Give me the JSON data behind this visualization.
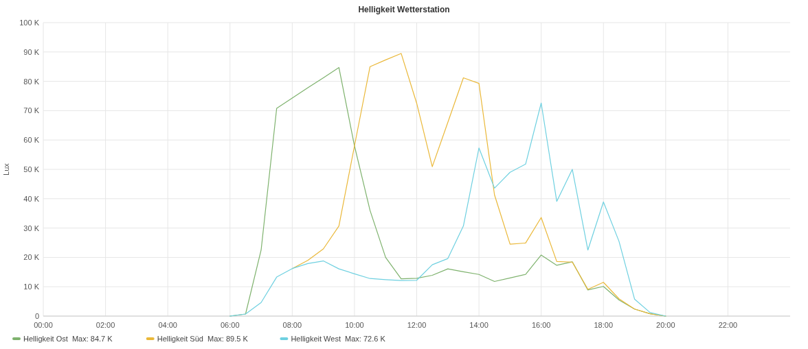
{
  "chart_data": {
    "type": "line",
    "title": "Helligkeit Wetterstation",
    "ylabel": "Lux",
    "x": [
      6,
      6.5,
      7,
      7.5,
      8,
      8.5,
      9,
      9.5,
      10,
      10.5,
      11,
      11.5,
      12,
      12.5,
      13,
      13.5,
      14,
      14.5,
      15,
      15.5,
      16,
      16.5,
      17,
      17.5,
      18,
      18.5,
      19,
      19.5,
      20
    ],
    "series": [
      {
        "name": "Helligkeit Ost  Max: 84.7 K",
        "color": "#7eb26d",
        "values": [
          0,
          0.7,
          22.5,
          70.8,
          74.3,
          77.8,
          81.2,
          84.7,
          58,
          36,
          20,
          12.7,
          12.9,
          13.9,
          16.1,
          15.1,
          14.2,
          11.8,
          13,
          14.2,
          20.8,
          17.3,
          18.5,
          8.9,
          10.1,
          5.5,
          2.4,
          0.8,
          0
        ]
      },
      {
        "name": "Helligkeit Süd  Max: 89.5 K",
        "color": "#eab839",
        "values": [
          null,
          null,
          null,
          null,
          16.2,
          19,
          22.9,
          30.7,
          58,
          85,
          87.3,
          89.5,
          72.5,
          50.9,
          66,
          81.2,
          79.3,
          41.3,
          24.5,
          24.9,
          33.6,
          18.6,
          18.4,
          9.1,
          11.5,
          5.9,
          2.4,
          0.8,
          0
        ]
      },
      {
        "name": "Helligkeit West  Max: 72.6 K",
        "color": "#6ed0e0",
        "values": [
          0,
          0.7,
          4.6,
          13.3,
          16.2,
          17.9,
          18.8,
          16.1,
          14.4,
          12.8,
          12.4,
          12.1,
          12.2,
          17.5,
          19.6,
          30.7,
          57.3,
          43.6,
          49,
          51.8,
          72.6,
          39.1,
          50,
          22.5,
          38.9,
          25.5,
          5.8,
          1.2,
          0
        ]
      }
    ],
    "xlim": [
      0,
      24
    ],
    "xticks": [
      {
        "value": 0,
        "label": "00:00"
      },
      {
        "value": 2,
        "label": "02:00"
      },
      {
        "value": 4,
        "label": "04:00"
      },
      {
        "value": 6,
        "label": "06:00"
      },
      {
        "value": 8,
        "label": "08:00"
      },
      {
        "value": 10,
        "label": "10:00"
      },
      {
        "value": 12,
        "label": "12:00"
      },
      {
        "value": 14,
        "label": "14:00"
      },
      {
        "value": 16,
        "label": "16:00"
      },
      {
        "value": 18,
        "label": "18:00"
      },
      {
        "value": 20,
        "label": "20:00"
      },
      {
        "value": 22,
        "label": "22:00"
      }
    ],
    "ylim": [
      0,
      100
    ],
    "yticks": [
      0,
      {
        "value": 10,
        "label": "10 K"
      },
      {
        "value": 20,
        "label": "20 K"
      },
      {
        "value": 30,
        "label": "30 K"
      },
      {
        "value": 40,
        "label": "40 K"
      },
      {
        "value": 50,
        "label": "50 K"
      },
      {
        "value": 60,
        "label": "60 K"
      },
      {
        "value": 70,
        "label": "70 K"
      },
      {
        "value": 80,
        "label": "80 K"
      },
      {
        "value": 90,
        "label": "90 K"
      },
      {
        "value": 100,
        "label": "100 K"
      }
    ],
    "grid": true,
    "legend": "bottom left",
    "marker": "none",
    "line_style": "solid"
  }
}
